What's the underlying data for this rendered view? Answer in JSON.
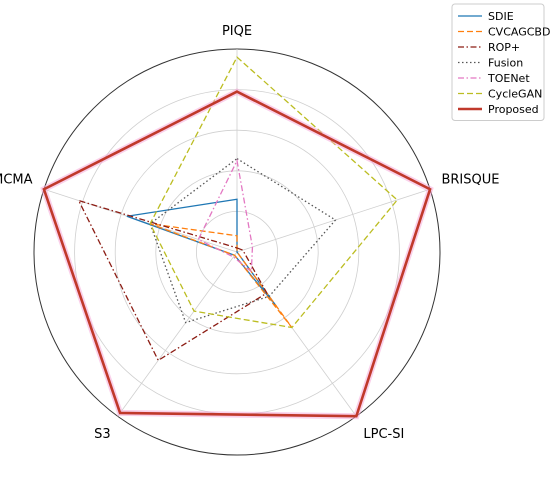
{
  "chart_data": {
    "type": "radar",
    "title": "",
    "axes": [
      "PIQE",
      "BRISQUE",
      "LPC-SI",
      "S3",
      "MCMA"
    ],
    "rlim": [
      0,
      1
    ],
    "grid": true,
    "legend_position": "top-right",
    "series": [
      {
        "name": "SDIE",
        "color": "#1f77b4",
        "dash": "solid",
        "values": [
          0.26,
          0.0,
          0.33,
          0.02,
          0.57
        ]
      },
      {
        "name": "CVCAGCBD",
        "color": "#ff7f0e",
        "dash": "dashed",
        "values": [
          0.08,
          0.0,
          0.46,
          0.02,
          0.45
        ]
      },
      {
        "name": "ROP+",
        "color": "#8c1c13",
        "dash": "dashdot",
        "values": [
          0.02,
          0.03,
          0.25,
          0.66,
          0.82
        ]
      },
      {
        "name": "Fusion",
        "color": "#555555",
        "dash": "dotted",
        "values": [
          0.46,
          0.51,
          0.27,
          0.43,
          0.45
        ]
      },
      {
        "name": "TOENet",
        "color": "#e377c2",
        "dash": "dashdot",
        "values": [
          0.45,
          0.08,
          0.12,
          0.03,
          0.2
        ]
      },
      {
        "name": "CycleGAN",
        "color": "#bcbd22",
        "dash": "dashed",
        "values": [
          0.96,
          0.83,
          0.46,
          0.36,
          0.45
        ]
      },
      {
        "name": "Proposed",
        "color": "#c0392b",
        "dash": "solid",
        "values": [
          0.79,
          1.0,
          1.0,
          0.98,
          1.0
        ]
      }
    ]
  }
}
